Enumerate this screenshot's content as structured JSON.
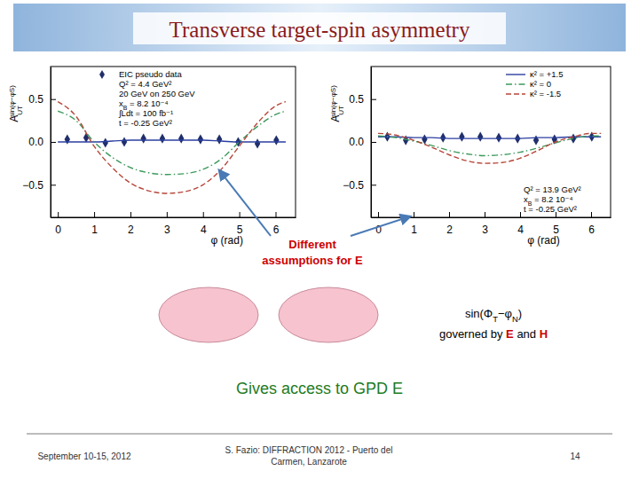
{
  "slide": {
    "title": "Transverse target-spin asymmetry",
    "arrow_note": [
      "Different",
      "assumptions for E"
    ],
    "formula": [
      {
        "text": "sin(Φ"
      },
      {
        "text": "T",
        "sub": true
      },
      {
        "text": "−φ"
      },
      {
        "text": "N",
        "sub": true
      },
      {
        "text": ")"
      }
    ],
    "formula_note": [
      {
        "text": "governed by "
      },
      {
        "text": "E",
        "color": "#cc0000"
      },
      {
        "text": " and "
      },
      {
        "text": "H",
        "color": "#cc0000"
      }
    ],
    "conclusion": "Gives access to GPD E",
    "footer": {
      "date": "September 10-15, 2012",
      "event": [
        "S. Fazio: DIFFRACTION 2012 - Puerto del",
        "Carmen, Lanzarote"
      ],
      "page": "14"
    }
  },
  "chart_data": [
    {
      "type": "line",
      "x_label": "φ (rad)",
      "y_label": {
        "main": "A",
        "sub": "UT",
        "sup": "sin(φ−φS)"
      },
      "xlim": [
        -0.2,
        6.55
      ],
      "xticks": [
        0,
        1,
        2,
        3,
        4,
        5,
        6
      ],
      "ylim": [
        -0.88,
        0.88
      ],
      "yticks": [
        {
          "value": -0.5,
          "label": "−0.5"
        },
        {
          "value": 0,
          "label": "0.0"
        },
        0.5
      ],
      "legend": "upper left",
      "annotations": [
        [
          {
            "text": "Q² = 4.4 GeV²"
          }
        ],
        [
          {
            "text": "20 GeV on 250 GeV"
          }
        ],
        [
          {
            "text": "x"
          },
          {
            "text": "B",
            "sub": true
          },
          {
            "text": " = 8.2 10⁻⁴"
          }
        ],
        [
          {
            "text": "∫Ldt = 100 fb⁻¹"
          }
        ],
        [
          {
            "text": "t = -0.25 GeV²"
          }
        ]
      ],
      "series": [
        {
          "name": "EIC pseudo data",
          "type": "scatter",
          "color": "#1f2f6b",
          "marker": "diamond",
          "x": [
            0.26,
            0.78,
            1.31,
            1.83,
            2.36,
            2.88,
            3.4,
            3.93,
            4.45,
            4.97,
            5.5,
            6.02
          ],
          "values": [
            0.03,
            0.05,
            -0.01,
            0.0,
            0.04,
            0.04,
            0.04,
            0.03,
            0.03,
            0.0,
            -0.02,
            0.02
          ],
          "errors": [
            0.03,
            0.03,
            0.03,
            0.03,
            0.03,
            0.03,
            0.03,
            0.03,
            0.03,
            0.03,
            0.03,
            0.03
          ]
        },
        {
          "type": "line",
          "color": "#2b3fa0",
          "line_style": "solid",
          "x": [
            0,
            0.5,
            1,
            1.5,
            2,
            2.5,
            3,
            3.5,
            4,
            4.5,
            5,
            5.5,
            6,
            6.28
          ],
          "values": [
            0.0,
            0.0,
            0.0,
            0.01,
            0.02,
            0.02,
            0.02,
            0.02,
            0.02,
            0.01,
            0.0,
            0.0,
            0.0,
            0.0
          ]
        },
        {
          "type": "line",
          "color": "#3c9a5c",
          "line_style": "dashdot",
          "x": [
            0,
            0.5,
            1,
            1.5,
            2,
            2.5,
            3,
            3.5,
            4,
            4.5,
            5,
            5.5,
            6,
            6.28
          ],
          "values": [
            0.36,
            0.25,
            0.0,
            -0.18,
            -0.3,
            -0.36,
            -0.38,
            -0.37,
            -0.32,
            -0.2,
            0.0,
            0.18,
            0.32,
            0.36
          ]
        },
        {
          "type": "line",
          "color": "#b5473a",
          "line_style": "dashed",
          "x": [
            0,
            0.5,
            1,
            1.5,
            2,
            2.5,
            3,
            3.5,
            4,
            4.5,
            5,
            5.5,
            6,
            6.28
          ],
          "values": [
            0.47,
            0.3,
            -0.05,
            -0.3,
            -0.48,
            -0.57,
            -0.6,
            -0.58,
            -0.5,
            -0.32,
            -0.05,
            0.22,
            0.42,
            0.47
          ]
        }
      ]
    },
    {
      "type": "line",
      "x_label": "φ (rad)",
      "y_label": {
        "main": "A",
        "sub": "UT",
        "sup": "sin(φ−φS)"
      },
      "xlim": [
        -0.2,
        6.55
      ],
      "xticks": [
        0,
        1,
        2,
        3,
        4,
        5,
        6
      ],
      "ylim": [
        -0.88,
        0.88
      ],
      "yticks": [
        {
          "value": -0.5,
          "label": "−0.5"
        },
        {
          "value": 0,
          "label": "0.0"
        },
        0.5
      ],
      "legend": "upper right",
      "annotations": [
        [
          {
            "text": "Q² = 13.9 GeV²"
          }
        ],
        [
          {
            "text": "x"
          },
          {
            "text": "B",
            "sub": true
          },
          {
            "text": " = 8.2 10⁻⁴"
          }
        ],
        [
          {
            "text": "t = -0.25 GeV²"
          }
        ]
      ],
      "series": [
        {
          "type": "scatter",
          "color": "#1f2f6b",
          "marker": "diamond",
          "x": [
            0.26,
            0.78,
            1.31,
            1.83,
            2.36,
            2.88,
            3.4,
            3.93,
            4.45,
            4.97,
            5.5,
            6.02
          ],
          "values": [
            0.06,
            0.02,
            0.03,
            0.05,
            0.06,
            0.06,
            0.05,
            0.04,
            0.02,
            0.03,
            0.04,
            0.06
          ],
          "errors": [
            0.03,
            0.03,
            0.03,
            0.03,
            0.03,
            0.03,
            0.03,
            0.03,
            0.03,
            0.03,
            0.03,
            0.03
          ]
        },
        {
          "name": "κ² = +1.5",
          "type": "line",
          "color": "#2b3fa0",
          "line_style": "solid",
          "x": [
            0,
            0.5,
            1,
            1.5,
            2,
            2.5,
            3,
            3.5,
            4,
            4.5,
            5,
            5.5,
            6,
            6.28
          ],
          "values": [
            0.06,
            0.06,
            0.05,
            0.05,
            0.04,
            0.04,
            0.04,
            0.04,
            0.04,
            0.05,
            0.05,
            0.06,
            0.06,
            0.06
          ]
        },
        {
          "name": "κ² = 0",
          "type": "line",
          "color": "#3c9a5c",
          "line_style": "dashdot",
          "x": [
            0,
            0.5,
            1,
            1.5,
            2,
            2.5,
            3,
            3.5,
            4,
            4.5,
            5,
            5.5,
            6,
            6.28
          ],
          "values": [
            0.07,
            0.05,
            0.01,
            -0.04,
            -0.1,
            -0.14,
            -0.16,
            -0.15,
            -0.12,
            -0.07,
            -0.01,
            0.04,
            0.07,
            0.07
          ]
        },
        {
          "name": "κ² = -1.5",
          "type": "line",
          "color": "#b5473a",
          "line_style": "dashed",
          "x": [
            0,
            0.5,
            1,
            1.5,
            2,
            2.5,
            3,
            3.5,
            4,
            4.5,
            5,
            5.5,
            6,
            6.28
          ],
          "values": [
            0.1,
            0.08,
            0.02,
            -0.06,
            -0.15,
            -0.22,
            -0.25,
            -0.24,
            -0.19,
            -0.1,
            0.0,
            0.06,
            0.1,
            0.1
          ]
        }
      ]
    }
  ]
}
